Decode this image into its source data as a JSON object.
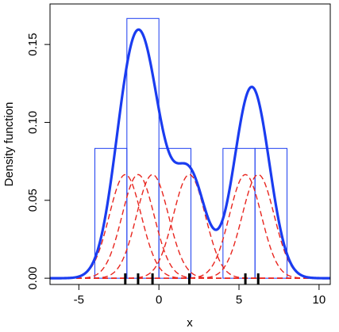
{
  "chart_data": {
    "type": "histogram+density",
    "title": "",
    "xlabel": "x",
    "ylabel": "Density function",
    "xlim": [
      -6.8,
      10.7
    ],
    "ylim": [
      -0.004,
      0.176
    ],
    "x_ticks": [
      -5,
      0,
      5,
      10
    ],
    "x_tick_labels": [
      "-5",
      "0",
      "5",
      "10"
    ],
    "y_ticks": [
      0.0,
      0.05,
      0.1,
      0.15
    ],
    "y_tick_labels": [
      "0.00",
      "0.05",
      "0.10",
      "0.15"
    ],
    "grid": false,
    "legend": "none",
    "data_points": [
      -2.1,
      -1.3,
      -0.4,
      1.9,
      5.4,
      6.2
    ],
    "kernel_bandwidth": 1.0,
    "histogram": {
      "bins": [
        {
          "x0": -4,
          "x1": -2,
          "density": 0.0833
        },
        {
          "x0": -2,
          "x1": 0,
          "density": 0.1667
        },
        {
          "x0": 0,
          "x1": 2,
          "density": 0.0833
        },
        {
          "x0": 2,
          "x1": 4,
          "density": 0.0
        },
        {
          "x0": 4,
          "x1": 6,
          "density": 0.0833
        },
        {
          "x0": 6,
          "x1": 8,
          "density": 0.0833
        }
      ]
    },
    "colors": {
      "density": "#1a3cf0",
      "kernels": "#e8251e",
      "histogram": "#1a3cf0",
      "rug": "#000000"
    }
  }
}
